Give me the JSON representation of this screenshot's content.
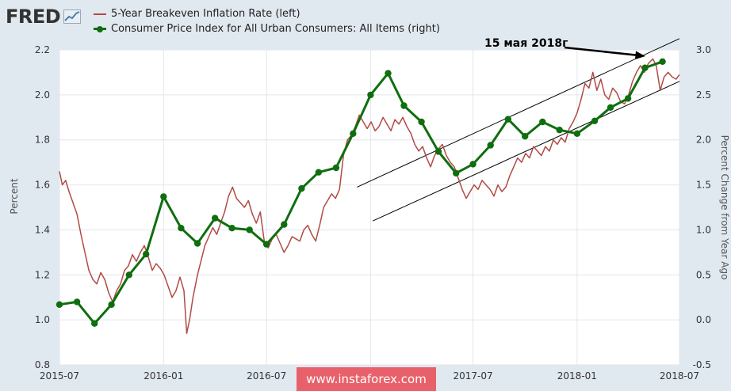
{
  "logo": {
    "text": "FRED",
    "icon": "chart-line-icon"
  },
  "legend": [
    {
      "label": "5-Year Breakeven Inflation Rate (left)",
      "color": "#b24a45",
      "marker": false
    },
    {
      "label": "Consumer Price Index for All Urban Consumers: All Items (right)",
      "color": "#0f6e0f",
      "marker": true
    }
  ],
  "annotation": {
    "text": "15 мая 2018г"
  },
  "watermark": {
    "text": "www.instaforex.com"
  },
  "chart_data": {
    "type": "line",
    "x_tick_labels": [
      "2015-07",
      "2016-01",
      "2016-07",
      "2017-01",
      "2017-07",
      "2018-01",
      "2018-07"
    ],
    "xlim": [
      "2015-07-01",
      "2018-07-01"
    ],
    "left_axis": {
      "label": "Percent",
      "ylim": [
        0.8,
        2.2
      ],
      "ticks": [
        "0.8",
        "1.0",
        "1.2",
        "1.4",
        "1.6",
        "1.8",
        "2.0",
        "2.2"
      ]
    },
    "right_axis": {
      "label": "Percent Change from Year Ago",
      "ylim": [
        -0.5,
        3.0
      ],
      "ticks": [
        "-0.5",
        "0.0",
        "0.5",
        "1.0",
        "1.5",
        "2.0",
        "2.5",
        "3.0"
      ]
    },
    "grid": true,
    "legend_position": "top-left",
    "series": [
      {
        "name": "5-Year Breakeven Inflation Rate (left)",
        "axis": "left",
        "color": "#b24a45",
        "points": [
          [
            "2015-07-01",
            1.66
          ],
          [
            "2015-07-06",
            1.6
          ],
          [
            "2015-07-12",
            1.62
          ],
          [
            "2015-07-18",
            1.57
          ],
          [
            "2015-07-25",
            1.52
          ],
          [
            "2015-08-01",
            1.47
          ],
          [
            "2015-08-08",
            1.38
          ],
          [
            "2015-08-15",
            1.3
          ],
          [
            "2015-08-22",
            1.22
          ],
          [
            "2015-08-29",
            1.18
          ],
          [
            "2015-09-05",
            1.16
          ],
          [
            "2015-09-12",
            1.21
          ],
          [
            "2015-09-19",
            1.18
          ],
          [
            "2015-09-26",
            1.12
          ],
          [
            "2015-10-03",
            1.08
          ],
          [
            "2015-10-10",
            1.13
          ],
          [
            "2015-10-17",
            1.16
          ],
          [
            "2015-10-24",
            1.22
          ],
          [
            "2015-10-31",
            1.24
          ],
          [
            "2015-11-07",
            1.29
          ],
          [
            "2015-11-14",
            1.26
          ],
          [
            "2015-11-21",
            1.3
          ],
          [
            "2015-11-28",
            1.33
          ],
          [
            "2015-12-05",
            1.28
          ],
          [
            "2015-12-12",
            1.22
          ],
          [
            "2015-12-19",
            1.25
          ],
          [
            "2015-12-26",
            1.23
          ],
          [
            "2016-01-02",
            1.2
          ],
          [
            "2016-01-09",
            1.15
          ],
          [
            "2016-01-16",
            1.1
          ],
          [
            "2016-01-23",
            1.13
          ],
          [
            "2016-01-30",
            1.19
          ],
          [
            "2016-02-06",
            1.13
          ],
          [
            "2016-02-11",
            0.94
          ],
          [
            "2016-02-16",
            1.0
          ],
          [
            "2016-02-22",
            1.1
          ],
          [
            "2016-03-01",
            1.2
          ],
          [
            "2016-03-07",
            1.26
          ],
          [
            "2016-03-14",
            1.33
          ],
          [
            "2016-03-21",
            1.37
          ],
          [
            "2016-03-28",
            1.41
          ],
          [
            "2016-04-04",
            1.38
          ],
          [
            "2016-04-11",
            1.43
          ],
          [
            "2016-04-18",
            1.48
          ],
          [
            "2016-04-25",
            1.55
          ],
          [
            "2016-05-02",
            1.59
          ],
          [
            "2016-05-09",
            1.54
          ],
          [
            "2016-05-16",
            1.52
          ],
          [
            "2016-05-23",
            1.5
          ],
          [
            "2016-05-30",
            1.53
          ],
          [
            "2016-06-06",
            1.47
          ],
          [
            "2016-06-13",
            1.43
          ],
          [
            "2016-06-20",
            1.48
          ],
          [
            "2016-06-27",
            1.35
          ],
          [
            "2016-07-04",
            1.32
          ],
          [
            "2016-07-11",
            1.36
          ],
          [
            "2016-07-18",
            1.38
          ],
          [
            "2016-07-25",
            1.34
          ],
          [
            "2016-08-01",
            1.3
          ],
          [
            "2016-08-08",
            1.33
          ],
          [
            "2016-08-15",
            1.37
          ],
          [
            "2016-08-22",
            1.36
          ],
          [
            "2016-08-29",
            1.35
          ],
          [
            "2016-09-05",
            1.4
          ],
          [
            "2016-09-12",
            1.42
          ],
          [
            "2016-09-19",
            1.38
          ],
          [
            "2016-09-26",
            1.35
          ],
          [
            "2016-10-03",
            1.42
          ],
          [
            "2016-10-10",
            1.5
          ],
          [
            "2016-10-17",
            1.53
          ],
          [
            "2016-10-24",
            1.56
          ],
          [
            "2016-10-31",
            1.54
          ],
          [
            "2016-11-07",
            1.58
          ],
          [
            "2016-11-14",
            1.73
          ],
          [
            "2016-11-21",
            1.8
          ],
          [
            "2016-11-28",
            1.82
          ],
          [
            "2016-12-05",
            1.86
          ],
          [
            "2016-12-12",
            1.91
          ],
          [
            "2016-12-19",
            1.88
          ],
          [
            "2016-12-26",
            1.85
          ],
          [
            "2017-01-02",
            1.88
          ],
          [
            "2017-01-09",
            1.84
          ],
          [
            "2017-01-16",
            1.86
          ],
          [
            "2017-01-23",
            1.9
          ],
          [
            "2017-01-30",
            1.87
          ],
          [
            "2017-02-06",
            1.84
          ],
          [
            "2017-02-13",
            1.89
          ],
          [
            "2017-02-20",
            1.87
          ],
          [
            "2017-02-27",
            1.9
          ],
          [
            "2017-03-06",
            1.86
          ],
          [
            "2017-03-13",
            1.83
          ],
          [
            "2017-03-20",
            1.78
          ],
          [
            "2017-03-27",
            1.75
          ],
          [
            "2017-04-03",
            1.77
          ],
          [
            "2017-04-10",
            1.72
          ],
          [
            "2017-04-17",
            1.68
          ],
          [
            "2017-04-24",
            1.73
          ],
          [
            "2017-05-01",
            1.76
          ],
          [
            "2017-05-08",
            1.78
          ],
          [
            "2017-05-15",
            1.73
          ],
          [
            "2017-05-22",
            1.7
          ],
          [
            "2017-05-29",
            1.68
          ],
          [
            "2017-06-05",
            1.63
          ],
          [
            "2017-06-12",
            1.58
          ],
          [
            "2017-06-19",
            1.54
          ],
          [
            "2017-06-26",
            1.57
          ],
          [
            "2017-07-03",
            1.6
          ],
          [
            "2017-07-10",
            1.58
          ],
          [
            "2017-07-17",
            1.62
          ],
          [
            "2017-07-24",
            1.6
          ],
          [
            "2017-07-31",
            1.58
          ],
          [
            "2017-08-07",
            1.55
          ],
          [
            "2017-08-14",
            1.6
          ],
          [
            "2017-08-21",
            1.57
          ],
          [
            "2017-08-28",
            1.59
          ],
          [
            "2017-09-04",
            1.64
          ],
          [
            "2017-09-11",
            1.68
          ],
          [
            "2017-09-18",
            1.72
          ],
          [
            "2017-09-25",
            1.7
          ],
          [
            "2017-10-02",
            1.74
          ],
          [
            "2017-10-09",
            1.72
          ],
          [
            "2017-10-16",
            1.77
          ],
          [
            "2017-10-23",
            1.75
          ],
          [
            "2017-10-30",
            1.73
          ],
          [
            "2017-11-06",
            1.77
          ],
          [
            "2017-11-13",
            1.75
          ],
          [
            "2017-11-20",
            1.8
          ],
          [
            "2017-11-27",
            1.78
          ],
          [
            "2017-12-04",
            1.81
          ],
          [
            "2017-12-11",
            1.79
          ],
          [
            "2017-12-18",
            1.85
          ],
          [
            "2017-12-25",
            1.88
          ],
          [
            "2018-01-01",
            1.92
          ],
          [
            "2018-01-08",
            1.98
          ],
          [
            "2018-01-15",
            2.05
          ],
          [
            "2018-01-22",
            2.03
          ],
          [
            "2018-01-29",
            2.1
          ],
          [
            "2018-02-05",
            2.02
          ],
          [
            "2018-02-12",
            2.07
          ],
          [
            "2018-02-19",
            2.0
          ],
          [
            "2018-02-26",
            1.98
          ],
          [
            "2018-03-05",
            2.03
          ],
          [
            "2018-03-12",
            2.01
          ],
          [
            "2018-03-19",
            1.97
          ],
          [
            "2018-03-26",
            1.96
          ],
          [
            "2018-04-02",
            2.0
          ],
          [
            "2018-04-09",
            2.06
          ],
          [
            "2018-04-16",
            2.1
          ],
          [
            "2018-04-23",
            2.13
          ],
          [
            "2018-04-30",
            2.1
          ],
          [
            "2018-05-07",
            2.14
          ],
          [
            "2018-05-15",
            2.16
          ],
          [
            "2018-05-21",
            2.13
          ],
          [
            "2018-05-28",
            2.02
          ],
          [
            "2018-06-04",
            2.08
          ],
          [
            "2018-06-11",
            2.1
          ],
          [
            "2018-06-18",
            2.08
          ],
          [
            "2018-06-25",
            2.07
          ],
          [
            "2018-07-01",
            2.09
          ]
        ]
      },
      {
        "name": "Consumer Price Index for All Urban Consumers: All Items (right)",
        "axis": "right",
        "color": "#0f6e0f",
        "points": [
          [
            "2015-07-01",
            0.17
          ],
          [
            "2015-08-01",
            0.2
          ],
          [
            "2015-09-01",
            -0.04
          ],
          [
            "2015-10-01",
            0.17
          ],
          [
            "2015-11-01",
            0.5
          ],
          [
            "2015-12-01",
            0.73
          ],
          [
            "2016-01-01",
            1.37
          ],
          [
            "2016-02-01",
            1.02
          ],
          [
            "2016-03-01",
            0.85
          ],
          [
            "2016-04-01",
            1.13
          ],
          [
            "2016-05-01",
            1.02
          ],
          [
            "2016-06-01",
            1.0
          ],
          [
            "2016-07-01",
            0.84
          ],
          [
            "2016-08-01",
            1.06
          ],
          [
            "2016-09-01",
            1.46
          ],
          [
            "2016-10-01",
            1.64
          ],
          [
            "2016-11-01",
            1.69
          ],
          [
            "2016-12-01",
            2.07
          ],
          [
            "2017-01-01",
            2.5
          ],
          [
            "2017-02-01",
            2.74
          ],
          [
            "2017-03-01",
            2.38
          ],
          [
            "2017-04-01",
            2.2
          ],
          [
            "2017-05-01",
            1.87
          ],
          [
            "2017-06-01",
            1.63
          ],
          [
            "2017-07-01",
            1.73
          ],
          [
            "2017-08-01",
            1.94
          ],
          [
            "2017-09-01",
            2.23
          ],
          [
            "2017-10-01",
            2.04
          ],
          [
            "2017-11-01",
            2.2
          ],
          [
            "2017-12-01",
            2.11
          ],
          [
            "2018-01-01",
            2.07
          ],
          [
            "2018-02-01",
            2.21
          ],
          [
            "2018-03-01",
            2.36
          ],
          [
            "2018-04-01",
            2.46
          ],
          [
            "2018-05-01",
            2.8
          ],
          [
            "2018-06-01",
            2.87
          ]
        ]
      }
    ],
    "channel_lines": [
      {
        "from": [
          "2016-12-08",
          1.59
        ],
        "to": [
          "2018-07-01",
          2.25
        ],
        "axis": "left"
      },
      {
        "from": [
          "2017-01-05",
          1.44
        ],
        "to": [
          "2018-07-01",
          2.06
        ],
        "axis": "left"
      }
    ]
  }
}
